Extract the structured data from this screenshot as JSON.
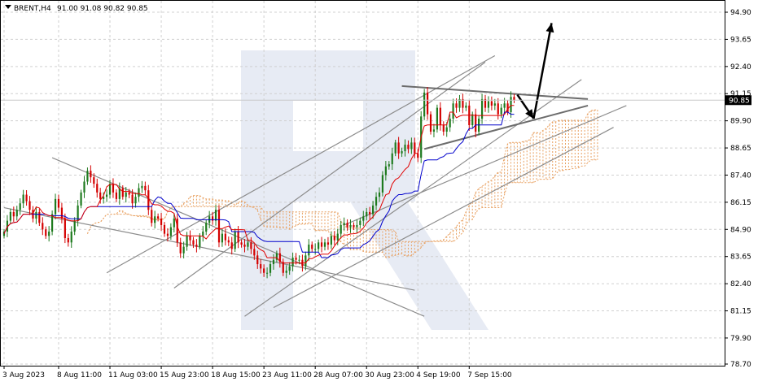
{
  "header": {
    "symbol": "BRENT,H4",
    "ohlc": "91.00 91.08 90.82 90.85"
  },
  "colors": {
    "bull": "#1e7a1e",
    "bear": "#d40000",
    "tenkan": "#e00000",
    "kijun": "#0000cc",
    "cloud": "#e8a060",
    "trendline": "#8c8c8c",
    "arrow": "#000000",
    "grid": "#d0d0d0",
    "price_marker_bg": "#000000",
    "price_marker_text": "#ffffff"
  },
  "chart_data": {
    "type": "candlestick",
    "title": "",
    "xlabel": "",
    "ylabel": "",
    "ylim": [
      78.7,
      95.2
    ],
    "grid": true,
    "current_price": "90.85",
    "y_ticks": [
      "94.90",
      "93.65",
      "92.40",
      "91.15",
      "89.90",
      "88.65",
      "87.40",
      "86.15",
      "84.90",
      "83.65",
      "82.40",
      "81.15",
      "79.90",
      "78.70"
    ],
    "x_ticks": [
      "3 Aug 2023",
      "8 Aug 11:00",
      "11 Aug 03:00",
      "15 Aug 23:00",
      "18 Aug 15:00",
      "23 Aug 11:00",
      "28 Aug 07:00",
      "30 Aug 23:00",
      "4 Sep 19:00",
      "7 Sep 15:00"
    ],
    "x_tick_index": [
      0,
      17,
      33,
      49,
      65,
      81,
      97,
      113,
      129,
      145
    ],
    "close": [
      84.8,
      85.3,
      85.7,
      85.5,
      85.8,
      86.1,
      86.5,
      86.2,
      85.8,
      85.4,
      85.7,
      85.2,
      84.9,
      84.6,
      84.8,
      85.6,
      86.3,
      85.9,
      85.4,
      84.5,
      84.3,
      84.8,
      85.3,
      86.0,
      86.6,
      87.1,
      87.6,
      87.3,
      87.0,
      86.6,
      86.3,
      86.4,
      86.5,
      87.0,
      86.6,
      86.3,
      86.8,
      86.4,
      86.6,
      86.5,
      86.1,
      86.4,
      86.8,
      86.9,
      86.7,
      85.8,
      85.2,
      85.5,
      85.4,
      85.1,
      84.7,
      84.6,
      85.0,
      85.4,
      84.3,
      83.8,
      84.1,
      84.6,
      84.4,
      84.2,
      84.1,
      84.6,
      84.8,
      85.2,
      85.5,
      85.3,
      85.8,
      84.3,
      84.7,
      84.4,
      84.3,
      84.0,
      84.8,
      84.3,
      84.2,
      84.1,
      84.3,
      84.0,
      83.7,
      83.3,
      83.1,
      82.9,
      82.9,
      83.3,
      83.5,
      83.8,
      83.4,
      82.9,
      83.0,
      83.2,
      83.6,
      83.5,
      83.5,
      83.2,
      83.7,
      84.2,
      84.0,
      84.0,
      84.3,
      84.1,
      84.3,
      84.2,
      84.6,
      84.4,
      84.7,
      85.1,
      85.2,
      85.0,
      85.1,
      85.0,
      85.1,
      85.3,
      85.5,
      85.7,
      85.6,
      86.0,
      86.4,
      86.6,
      87.4,
      87.8,
      87.9,
      88.4,
      88.9,
      88.4,
      88.5,
      88.8,
      88.6,
      88.9,
      88.4,
      88.2,
      90.1,
      91.2,
      90.2,
      89.4,
      89.5,
      90.5,
      89.7,
      89.4,
      89.6,
      90.0,
      90.7,
      90.5,
      90.9,
      90.5,
      90.6,
      89.7,
      90.2,
      89.4,
      90.0,
      90.9,
      90.5,
      90.8,
      90.6,
      90.7,
      90.2,
      90.5,
      90.7,
      90.3,
      91.0,
      90.85
    ]
  }
}
